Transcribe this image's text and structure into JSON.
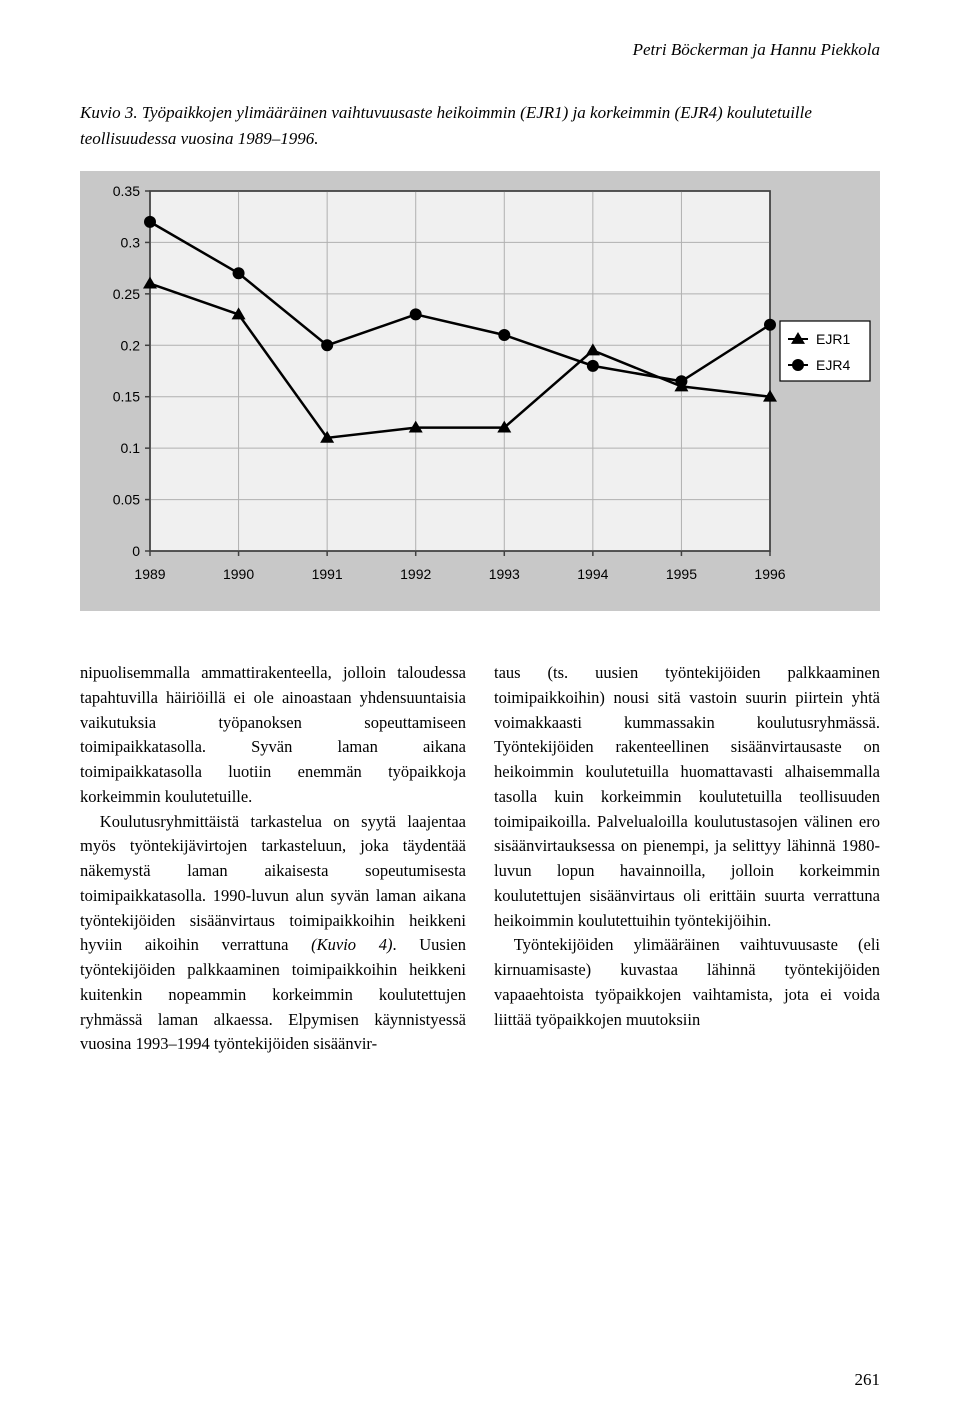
{
  "header": {
    "authors": "Petri Böckerman ja Hannu Piekkola"
  },
  "figure": {
    "label": "Kuvio 3.",
    "caption": "Työpaikkojen ylimääräinen vaihtuvuusaste heikoimmin (EJR1) ja korkeimmin (EJR4) koulutetuille teollisuudessa vuosina 1989–1996."
  },
  "chart": {
    "type": "line",
    "background_color": "#c8c8c8",
    "plot_bg_color": "#f0f0f0",
    "grid_color": "#b0b0b0",
    "axis_color": "#404040",
    "label_color": "#000000",
    "label_fontsize": 14,
    "xlim": [
      1989,
      1996
    ],
    "ylim": [
      0,
      0.35
    ],
    "ytick_step": 0.05,
    "xticks": [
      1989,
      1990,
      1991,
      1992,
      1993,
      1994,
      1995,
      1996
    ],
    "yticks": [
      0,
      0.05,
      0.1,
      0.15,
      0.2,
      0.25,
      0.3,
      0.35
    ],
    "series": [
      {
        "name": "EJR1",
        "marker": "triangle",
        "color": "#000000",
        "line_width": 2.5,
        "values": [
          0.26,
          0.23,
          0.11,
          0.12,
          0.12,
          0.195,
          0.16,
          0.15
        ]
      },
      {
        "name": "EJR4",
        "marker": "circle",
        "color": "#000000",
        "line_width": 2.5,
        "values": [
          0.32,
          0.27,
          0.2,
          0.23,
          0.21,
          0.18,
          0.165,
          0.22
        ]
      }
    ],
    "legend": {
      "position": "right",
      "border_color": "#000000",
      "bg_color": "#ffffff",
      "items": [
        "EJR1",
        "EJR4"
      ]
    }
  },
  "body": {
    "col1": {
      "p1": "nipuolisemmalla ammattirakenteella, jolloin taloudessa tapahtuvilla häiriöillä ei ole ainoastaan yhdensuuntaisia vaikutuksia työpanoksen sopeuttamiseen toimipaikkatasolla. Syvän laman aikana toimipaikkatasolla luotiin enemmän työpaikkoja korkeimmin koulutetuille.",
      "p2a": "Koulutusryhmittäistä tarkastelua on syytä laajentaa myös työntekijävirtojen tarkasteluun, joka täydentää näkemystä laman aikaisesta sopeutumisesta toimipaikkatasolla. 1990-luvun alun syvän laman aikana työntekijöiden sisäänvirtaus toimipaikkoihin heikkeni hyviin aikoihin verrattuna ",
      "p2_ital": "(Kuvio 4)",
      "p2b": ". Uusien työntekijöiden palkkaaminen toimipaikkoihin heikkeni kuitenkin nopeammin korkeimmin koulutettujen ryhmässä laman alkaessa. Elpymisen käynnistyessä vuosina 1993–1994 työntekijöiden sisäänvir-"
    },
    "col2": {
      "p1": "taus (ts. uusien työntekijöiden palkkaaminen toimipaikkoihin) nousi sitä vastoin suurin piirtein yhtä voimakkaasti kummassakin koulutusryhmässä. Työntekijöiden rakenteellinen sisäänvirtausaste on heikoimmin koulutetuilla huomattavasti alhaisemmalla tasolla kuin korkeimmin koulutetuilla teollisuuden toimipaikoilla. Palvelualoilla koulutustasojen välinen ero sisäänvirtauksessa on pienempi, ja selittyy lähinnä 1980-luvun lopun havainnoilla, jolloin korkeimmin koulutettujen sisäänvirtaus oli erittäin suurta verrattuna heikoimmin koulutettuihin työntekijöihin.",
      "p2": "Työntekijöiden ylimääräinen vaihtuvuusaste (eli kirnuamisaste) kuvastaa lähinnä työntekijöiden vapaaehtoista työpaikkojen vaihtamista, jota ei voida liittää työpaikkojen muutoksiin"
    }
  },
  "page": {
    "number": "261"
  }
}
